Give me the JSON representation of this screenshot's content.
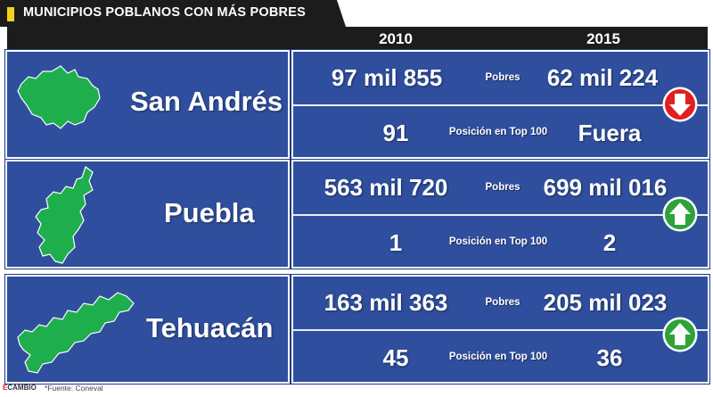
{
  "title": "MUNICIPIOS POBLANOS CON MÁS POBRES",
  "years": {
    "col1": "2010",
    "col2": "2015"
  },
  "labels": {
    "pobres": "Pobres",
    "posicion": "Posición en Top 100"
  },
  "rows": [
    {
      "city": "San Andrés",
      "pobres_2010": "97 mil 855",
      "pobres_2015": "62 mil 224",
      "pos_2010": "91",
      "pos_2015": "Fuera",
      "trend": "down",
      "trend_icon": "down-arrow-icon",
      "trend_color": "#e02020"
    },
    {
      "city": "Puebla",
      "pobres_2010": "563 mil 720",
      "pobres_2015": "699 mil 016",
      "pos_2010": "1",
      "pos_2015": "2",
      "trend": "up",
      "trend_icon": "up-arrow-icon",
      "trend_color": "#2ea33a"
    },
    {
      "city": "Tehuacán",
      "pobres_2010": "163 mil 363",
      "pobres_2015": "205 mil 023",
      "pos_2010": "45",
      "pos_2015": "36",
      "trend": "up",
      "trend_icon": "up-arrow-icon",
      "trend_color": "#2ea33a"
    }
  ],
  "footer": {
    "logo_prefix": "E",
    "logo": "CAMBIO",
    "source": "*Fuente: Coneval"
  },
  "colors": {
    "panel_blue": "#2f4f9e",
    "map_green": "#1fae4e",
    "title_accent": "#f3d21a"
  }
}
